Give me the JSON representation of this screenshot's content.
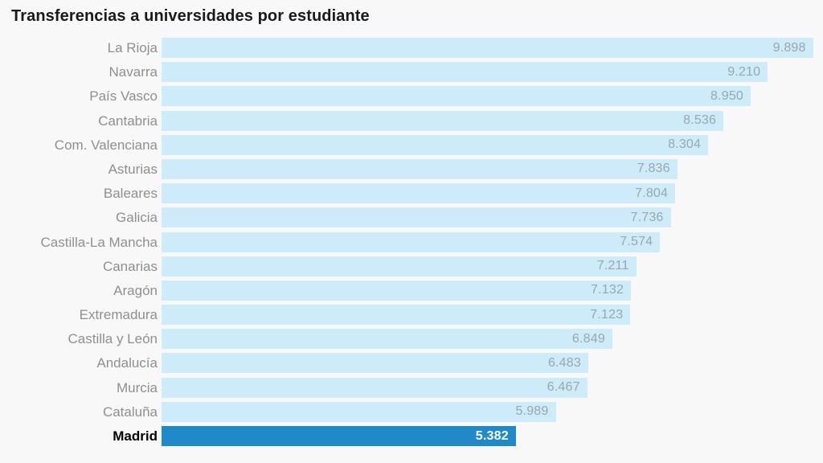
{
  "title": "Transferencias a universidades por estudiante",
  "colors": {
    "background": "#f8f8f8",
    "bar_default": "#cdebf8",
    "bar_highlight": "#2089c8",
    "label_default": "#8f8f8f",
    "label_highlight": "#000000",
    "value_default": "#9aa7ae",
    "value_highlight": "#ffffff",
    "title_text": "#1a1a1a"
  },
  "chart_data": {
    "type": "bar",
    "orientation": "horizontal",
    "title": "Transferencias a universidades por estudiante",
    "xlabel": "",
    "ylabel": "",
    "xlim": [
      0,
      10045
    ],
    "grid": false,
    "legend": false,
    "highlight_category": "Madrid",
    "categories": [
      "La Rioja",
      "Navarra",
      "País Vasco",
      "Cantabria",
      "Com. Valenciana",
      "Asturias",
      "Baleares",
      "Galicia",
      "Castilla-La Mancha",
      "Canarias",
      "Aragón",
      "Extremadura",
      "Castilla y León",
      "Andalucía",
      "Murcia",
      "Cataluña",
      "Madrid"
    ],
    "values": [
      9898,
      9210,
      8950,
      8536,
      8304,
      7836,
      7804,
      7736,
      7574,
      7211,
      7132,
      7123,
      6849,
      6483,
      6467,
      5989,
      5382
    ],
    "value_labels": [
      "9.898",
      "9.210",
      "8.950",
      "8.536",
      "8.304",
      "7.836",
      "7.804",
      "7.736",
      "7.574",
      "7.211",
      "7.132",
      "7.123",
      "6.849",
      "6.483",
      "6.467",
      "5.989",
      "5.382"
    ]
  }
}
